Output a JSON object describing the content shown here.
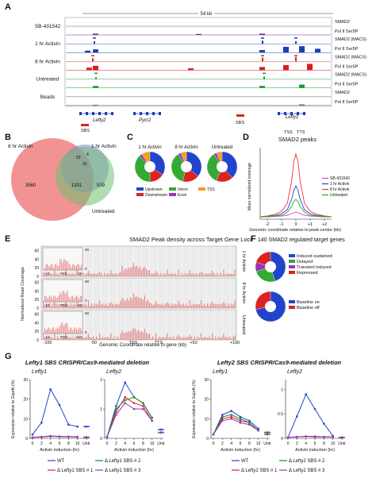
{
  "panel_letters": [
    "A",
    "B",
    "C",
    "D",
    "E",
    "F",
    "G"
  ],
  "panelA": {
    "scale_label": "54 kb",
    "rows": [
      {
        "label": "SB-431542",
        "tracks": [
          "SMAD2",
          "Pol II Ser5P"
        ]
      },
      {
        "label": "1 hr Activin",
        "tracks": [
          "SMAD2 (MACS)",
          "Pol II Ser5P"
        ]
      },
      {
        "label": "8 hr Activin",
        "tracks": [
          "SMAD2 (MACS)",
          "Pol II Ser5P"
        ]
      },
      {
        "label": "Untreated",
        "tracks": [
          "SMAD2 (MACS)",
          "Pol II Ser5P"
        ]
      },
      {
        "label": "Beads",
        "tracks": [
          "SMAD2",
          "Pol II Ser5P"
        ]
      }
    ],
    "genes": [
      "Lefty2",
      "Pycr2",
      "Lefty1"
    ],
    "annotations": [
      "SBS",
      "SBS",
      "TSS",
      "TTS"
    ],
    "colors": {
      "smad2_sb": "#6a2a9a",
      "smad2_1hr": "#1a3fb4",
      "smad2_8hr": "#d42020",
      "smad2_untr": "#1a9a2a",
      "pol2": "#c03050"
    }
  },
  "panelB": {
    "labels": [
      "8 hr Activin",
      "1 hr Activin",
      "Untreated"
    ],
    "numbers": [
      "3560",
      "1331",
      "539",
      "52",
      "4",
      "33"
    ],
    "colors": {
      "8hr": "#f08080",
      "1hr": "#8080e0",
      "untr": "#70c070"
    }
  },
  "panelC": {
    "titles": [
      "1 hr Activin",
      "8 hr Activin",
      "Untreated"
    ],
    "pies": [
      [
        {
          "name": "Upstream",
          "value": 34
        },
        {
          "name": "Downstream",
          "value": 16
        },
        {
          "name": "Intron",
          "value": 38
        },
        {
          "name": "Exon",
          "value": 3
        },
        {
          "name": "TSS",
          "value": 9
        }
      ],
      [
        {
          "name": "Upstream",
          "value": 36
        },
        {
          "name": "Downstream",
          "value": 18
        },
        {
          "name": "Intron",
          "value": 37
        },
        {
          "name": "Exon",
          "value": 3
        },
        {
          "name": "TSS",
          "value": 6
        }
      ],
      [
        {
          "name": "Upstream",
          "value": 38
        },
        {
          "name": "Downstream",
          "value": 18
        },
        {
          "name": "Intron",
          "value": 35
        },
        {
          "name": "Exon",
          "value": 3
        },
        {
          "name": "TSS",
          "value": 6
        }
      ]
    ],
    "legend": [
      {
        "name": "Upstream",
        "color": "#2244cc"
      },
      {
        "name": "Intron",
        "color": "#33aa33"
      },
      {
        "name": "TSS",
        "color": "#f0a020"
      },
      {
        "name": "Downstream",
        "color": "#dd2222"
      },
      {
        "name": "Exon",
        "color": "#9933bb"
      }
    ]
  },
  "chart_data": [
    {
      "type": "line",
      "title": "SMAD2 peaks",
      "xlabel": "Genomic coordinate relative to peak centre (kb)",
      "ylabel": "Mean normalized coverage",
      "x_ticks": [
        "-2",
        "-1",
        "0",
        "+1",
        "+2"
      ],
      "xlim": [
        -2.5,
        2.5
      ],
      "x": [
        -2.5,
        -2,
        -1.5,
        -1,
        -0.6,
        -0.3,
        -0.15,
        0,
        0.15,
        0.3,
        0.6,
        1,
        1.5,
        2,
        2.5
      ],
      "series": [
        {
          "name": "SB-431542",
          "color": "#cc44cc",
          "values": [
            0.3,
            0.3,
            0.35,
            0.4,
            0.5,
            0.7,
            0.8,
            0.9,
            0.8,
            0.7,
            0.5,
            0.4,
            0.35,
            0.3,
            0.3
          ]
        },
        {
          "name": "1 hr Activin",
          "color": "#2244cc",
          "values": [
            0.3,
            0.35,
            0.45,
            0.7,
            1.2,
            2.5,
            3.6,
            4.2,
            3.6,
            2.5,
            1.2,
            0.7,
            0.45,
            0.35,
            0.3
          ]
        },
        {
          "name": "8 hr Activin",
          "color": "#ee3333",
          "values": [
            0.3,
            0.4,
            0.6,
            1.0,
            2.0,
            4.8,
            7.2,
            8.2,
            7.2,
            4.8,
            2.0,
            1.0,
            0.6,
            0.4,
            0.3
          ]
        },
        {
          "name": "Untreated",
          "color": "#22aa22",
          "values": [
            0.3,
            0.3,
            0.4,
            0.5,
            0.9,
            1.6,
            2.2,
            2.5,
            2.2,
            1.6,
            0.9,
            0.5,
            0.4,
            0.3,
            0.3
          ]
        }
      ],
      "legend": "right",
      "ylim": [
        0,
        9
      ]
    },
    {
      "type": "area",
      "title": "SMAD2 Peak density across Target Gene Loci",
      "xlabel": "Genomic Coordinate relative to gene (kb)",
      "ylabel": "Normalized Read Coverage",
      "x_ticks": [
        "-100",
        "-50",
        "TSS",
        "TTS",
        "+50",
        "+100"
      ],
      "y_ticks": [
        "0",
        "20",
        "40",
        "60"
      ],
      "ylim": [
        0,
        70
      ],
      "panels": [
        "1 hr Activin",
        "8 hr Activin",
        "Untreated"
      ],
      "inset_x_ticks": [
        "-10",
        "TSS",
        "+10"
      ],
      "inset_y_ticks": [
        "0",
        "60"
      ]
    },
    {
      "type": "pie",
      "title": "140 SMAD2 regulated target genes",
      "pies": [
        [
          {
            "name": "Induced sustained",
            "value": 45,
            "color": "#2244cc"
          },
          {
            "name": "Delayed",
            "value": 25,
            "color": "#33aa33"
          },
          {
            "name": "Transient induced",
            "value": 10,
            "color": "#9933bb"
          },
          {
            "name": "Repressed",
            "value": 20,
            "color": "#dd2222"
          }
        ],
        [
          {
            "name": "Baseline on",
            "value": 72,
            "color": "#2244cc"
          },
          {
            "name": "Baseline off",
            "value": 28,
            "color": "#dd2222"
          }
        ]
      ]
    },
    {
      "type": "line",
      "title": "Lefty1 SBS CRISPR/Cas9-mediated deletion",
      "plots": [
        {
          "gene": "Lefty1",
          "xlabel": "Activin induction (hr)",
          "ylabel": "Expression relative to Gapdh (%)",
          "x_ticks": [
            "0",
            "2",
            "4",
            "6",
            "8",
            "10",
            "Untr"
          ],
          "ylim": [
            0,
            30
          ],
          "y_ticks": [
            "0",
            "10",
            "20",
            "30"
          ],
          "series": [
            {
              "name": "WT",
              "color": "#2244cc",
              "values": [
                2,
                8,
                25,
                17,
                7,
                6,
                6
              ]
            },
            {
              "name": "Δ Lefty1 SBS # 1",
              "color": "#dd2222",
              "values": [
                0.5,
                0.8,
                1.2,
                1.0,
                0.9,
                0.8,
                0.6
              ]
            },
            {
              "name": "Δ Lefty1 SBS # 2",
              "color": "#228822",
              "values": [
                0.5,
                0.7,
                1.0,
                0.9,
                0.8,
                0.7,
                0.5
              ]
            },
            {
              "name": "Δ Lefty1 SBS # 3",
              "color": "#9933bb",
              "values": [
                0.5,
                0.7,
                1.1,
                0.9,
                0.8,
                0.7,
                0.5
              ]
            }
          ]
        },
        {
          "gene": "Lefty2",
          "ylabel": "",
          "xlabel": "Activin induction (hr)",
          "x_ticks": [
            "0",
            "2",
            "4",
            "6",
            "8",
            "10",
            "Untr"
          ],
          "ylim": [
            0,
            2
          ],
          "y_ticks": [
            "0",
            "1",
            "2"
          ],
          "series": [
            {
              "name": "WT",
              "color": "#2244cc",
              "values": [
                0.05,
                1.1,
                1.9,
                1.4,
                1.2,
                0.7,
                0.3
              ]
            },
            {
              "name": "Δ Lefty1 SBS # 1",
              "color": "#dd2222",
              "values": [
                0.05,
                0.9,
                1.4,
                1.2,
                1.1,
                0.6,
                0.2
              ]
            },
            {
              "name": "Δ Lefty1 SBS # 2",
              "color": "#228822",
              "values": [
                0.05,
                1.0,
                1.3,
                1.4,
                1.2,
                0.7,
                0.2
              ]
            },
            {
              "name": "Δ Lefty1 SBS # 3",
              "color": "#9933bb",
              "values": [
                0.05,
                0.8,
                1.2,
                1.0,
                1.0,
                0.6,
                0.2
              ]
            }
          ]
        }
      ]
    },
    {
      "type": "line",
      "title": "Lefty2 SBS CRISPR/Cas9-mediated deletion",
      "plots": [
        {
          "gene": "Lefty1",
          "ylabel": "Expression relative to Gapdh (%)",
          "xlabel": "Activin induction (hr)",
          "x_ticks": [
            "0",
            "2",
            "4",
            "6",
            "8",
            "10",
            "Untr"
          ],
          "ylim": [
            0,
            30
          ],
          "y_ticks": [
            "0",
            "10",
            "20",
            "30"
          ],
          "series": [
            {
              "name": "WT",
              "color": "#2244cc",
              "values": [
                2,
                12,
                14,
                11,
                9,
                5,
                3
              ]
            },
            {
              "name": "Δ Lefty2 SBS # 1",
              "color": "#dd2222",
              "values": [
                2,
                10,
                11,
                9,
                8,
                4,
                3
              ]
            },
            {
              "name": "Δ Lefty2 SBS # 2",
              "color": "#228822",
              "values": [
                2,
                11,
                12,
                10,
                8,
                4,
                3
              ]
            },
            {
              "name": "Δ Lefty2 SBS # 3",
              "color": "#9933bb",
              "values": [
                2,
                9,
                10,
                8,
                7,
                4,
                2
              ]
            }
          ]
        },
        {
          "gene": "Lefty2",
          "ylabel": "",
          "xlabel": "Activin induction (hr)",
          "x_ticks": [
            "0",
            "2",
            "4",
            "6",
            "8",
            "10",
            "Untr"
          ],
          "ylim": [
            0,
            1.2
          ],
          "y_ticks": [
            "0",
            "0.5",
            "1"
          ],
          "series": [
            {
              "name": "WT",
              "color": "#2244cc",
              "values": [
                0.02,
                0.45,
                0.9,
                0.6,
                0.3,
                0.05,
                0.02
              ]
            },
            {
              "name": "Δ Lefty2 SBS # 1",
              "color": "#dd2222",
              "values": [
                0.02,
                0.03,
                0.04,
                0.04,
                0.03,
                0.03,
                0.02
              ]
            },
            {
              "name": "Δ Lefty2 SBS # 2",
              "color": "#228822",
              "values": [
                0.02,
                0.03,
                0.04,
                0.03,
                0.03,
                0.03,
                0.02
              ]
            },
            {
              "name": "Δ Lefty2 SBS # 3",
              "color": "#9933bb",
              "values": [
                0.02,
                0.03,
                0.04,
                0.03,
                0.03,
                0.03,
                0.02
              ]
            }
          ]
        }
      ]
    }
  ],
  "panelF_legends": [
    [
      "Induced sustained",
      "Delayed",
      "Transient induced",
      "Repressed"
    ],
    [
      "Baseline on",
      "Baseline off"
    ]
  ],
  "panelG_legends": [
    [
      "WT",
      "Δ Lefty1 SBS # 1",
      "Δ Lefty1 SBS # 2",
      "Δ Lefty1 SBS # 3"
    ],
    [
      "WT",
      "Δ Lefty2 SBS # 1",
      "Δ Lefty2 SBS # 2",
      "Δ Lefty2 SBS # 3"
    ]
  ]
}
